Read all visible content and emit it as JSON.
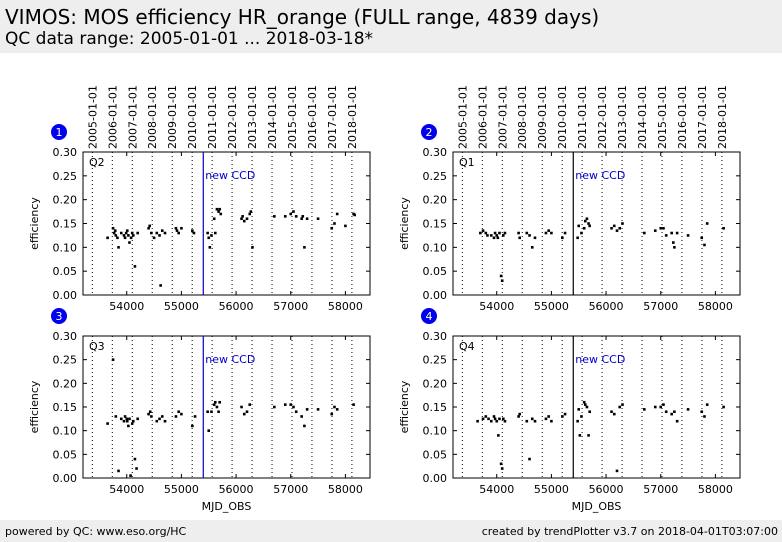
{
  "header": {
    "title": "VIMOS: MOS efficiency HR_orange (FULL range, 4839 days)",
    "subtitle": "QC data range: 2005-01-01 ... 2018-03-18*"
  },
  "footer": {
    "left": "powered by QC: www.eso.org/HC",
    "right": "created by trendPlotter v3.7 on 2018-04-01T03:07:00"
  },
  "colors": {
    "event_line": "#0000cc",
    "points": "#000000",
    "badge": "#0000ee"
  },
  "chart_data": [
    {
      "type": "scatter",
      "badge": "1",
      "label": "Q2",
      "xlabel": "",
      "ylabel": "efficiency",
      "xlim": [
        53200,
        58450
      ],
      "ylim": [
        0.0,
        0.3
      ],
      "xticks": [
        54000,
        55000,
        56000,
        57000,
        58000
      ],
      "yticks": [
        "0.00",
        "0.05",
        "0.10",
        "0.15",
        "0.20",
        "0.25",
        "0.30"
      ],
      "date_ticks": [
        "2005-01-01",
        "2006-01-01",
        "2007-01-01",
        "2008-01-01",
        "2009-01-01",
        "2010-01-01",
        "2011-01-01",
        "2012-01-01",
        "2013-01-01",
        "2014-01-01",
        "2015-01-01",
        "2016-01-01",
        "2017-01-01",
        "2018-01-01"
      ],
      "event": {
        "x": 55400,
        "label": "new CCD"
      },
      "x": [
        53650,
        53750,
        53770,
        53790,
        53800,
        53830,
        53850,
        53900,
        53950,
        53970,
        53990,
        54010,
        54030,
        54050,
        54080,
        54100,
        54120,
        54150,
        54200,
        54400,
        54420,
        54450,
        54500,
        54550,
        54600,
        54620,
        54650,
        54700,
        54900,
        54920,
        54950,
        55000,
        55200,
        55230,
        55480,
        55500,
        55520,
        55550,
        55600,
        55620,
        55650,
        55680,
        55700,
        55720,
        56100,
        56120,
        56150,
        56200,
        56250,
        56270,
        56300,
        56700,
        56900,
        57000,
        57050,
        57100,
        57200,
        57220,
        57250,
        57300,
        57500,
        57750,
        57800,
        57850,
        58000,
        58150,
        58170
      ],
      "y": [
        0.12,
        0.14,
        0.13,
        0.135,
        0.125,
        0.12,
        0.1,
        0.13,
        0.125,
        0.12,
        0.13,
        0.135,
        0.125,
        0.11,
        0.12,
        0.13,
        0.125,
        0.06,
        0.13,
        0.14,
        0.145,
        0.13,
        0.12,
        0.13,
        0.125,
        0.02,
        0.135,
        0.13,
        0.14,
        0.135,
        0.13,
        0.14,
        0.135,
        0.13,
        0.13,
        0.12,
        0.1,
        0.125,
        0.16,
        0.13,
        0.18,
        0.175,
        0.18,
        0.17,
        0.16,
        0.165,
        0.155,
        0.16,
        0.17,
        0.175,
        0.1,
        0.165,
        0.165,
        0.17,
        0.175,
        0.165,
        0.16,
        0.165,
        0.1,
        0.16,
        0.16,
        0.14,
        0.15,
        0.17,
        0.145,
        0.17,
        0.168
      ]
    },
    {
      "type": "scatter",
      "badge": "2",
      "label": "Q1",
      "xlabel": "",
      "ylabel": "efficiency",
      "xlim": [
        53200,
        58450
      ],
      "ylim": [
        0.0,
        0.3
      ],
      "xticks": [
        54000,
        55000,
        56000,
        57000,
        58000
      ],
      "yticks": [
        "0.00",
        "0.05",
        "0.10",
        "0.15",
        "0.20",
        "0.25",
        "0.30"
      ],
      "date_ticks": [
        "2005-01-01",
        "2006-01-01",
        "2007-01-01",
        "2008-01-01",
        "2009-01-01",
        "2010-01-01",
        "2011-01-01",
        "2012-01-01",
        "2013-01-01",
        "2014-01-01",
        "2015-01-01",
        "2016-01-01",
        "2017-01-01",
        "2018-01-01"
      ],
      "event": {
        "x": 55400,
        "label": "new CCD"
      },
      "x": [
        53700,
        53750,
        53800,
        53830,
        53900,
        53950,
        53970,
        54000,
        54020,
        54050,
        54080,
        54100,
        54120,
        54150,
        54400,
        54420,
        54550,
        54600,
        54650,
        54700,
        54900,
        54950,
        55000,
        55200,
        55250,
        55480,
        55500,
        55550,
        55600,
        55620,
        55650,
        55680,
        55700,
        56100,
        56150,
        56200,
        56250,
        56300,
        56700,
        56900,
        57000,
        57050,
        57100,
        57200,
        57230,
        57250,
        57300,
        57500,
        57750,
        57800,
        57850,
        58150
      ],
      "y": [
        0.13,
        0.135,
        0.13,
        0.125,
        0.125,
        0.12,
        0.13,
        0.125,
        0.12,
        0.13,
        0.04,
        0.03,
        0.125,
        0.13,
        0.13,
        0.12,
        0.13,
        0.125,
        0.1,
        0.12,
        0.13,
        0.135,
        0.13,
        0.12,
        0.13,
        0.12,
        0.145,
        0.13,
        0.14,
        0.155,
        0.16,
        0.15,
        0.145,
        0.14,
        0.145,
        0.135,
        0.14,
        0.15,
        0.13,
        0.135,
        0.14,
        0.14,
        0.125,
        0.13,
        0.11,
        0.1,
        0.13,
        0.125,
        0.12,
        0.105,
        0.15,
        0.14
      ]
    },
    {
      "type": "scatter",
      "badge": "3",
      "label": "Q3",
      "xlabel": "MJD_OBS",
      "ylabel": "efficiency",
      "xlim": [
        53200,
        58450
      ],
      "ylim": [
        0.0,
        0.3
      ],
      "xticks": [
        54000,
        55000,
        56000,
        57000,
        58000
      ],
      "yticks": [
        "0.00",
        "0.05",
        "0.10",
        "0.15",
        "0.20",
        "0.25",
        "0.30"
      ],
      "event": {
        "x": 55400,
        "label": "new CCD"
      },
      "x": [
        53650,
        53750,
        53800,
        53850,
        53900,
        53950,
        53970,
        54000,
        54010,
        54030,
        54050,
        54070,
        54100,
        54120,
        54150,
        54180,
        54200,
        54400,
        54430,
        54450,
        54550,
        54600,
        54650,
        54700,
        54900,
        54950,
        55000,
        55200,
        55250,
        55480,
        55500,
        55550,
        55600,
        55620,
        55650,
        55680,
        55700,
        56100,
        56150,
        56200,
        56250,
        56700,
        56900,
        57000,
        57050,
        57100,
        57200,
        57250,
        57300,
        57500,
        57750,
        57800,
        57850,
        58150
      ],
      "y": [
        0.115,
        0.25,
        0.13,
        0.015,
        0.125,
        0.12,
        0.13,
        0.125,
        0.12,
        0.11,
        0.125,
        0.005,
        0.115,
        0.12,
        0.04,
        0.02,
        0.125,
        0.135,
        0.14,
        0.13,
        0.12,
        0.125,
        0.13,
        0.12,
        0.13,
        0.14,
        0.135,
        0.11,
        0.13,
        0.14,
        0.1,
        0.14,
        0.155,
        0.16,
        0.15,
        0.14,
        0.16,
        0.15,
        0.135,
        0.14,
        0.155,
        0.15,
        0.155,
        0.155,
        0.15,
        0.14,
        0.13,
        0.11,
        0.145,
        0.145,
        0.135,
        0.15,
        0.145,
        0.155
      ]
    },
    {
      "type": "scatter",
      "badge": "4",
      "label": "Q4",
      "xlabel": "MJD_OBS",
      "ylabel": "efficiency",
      "xlim": [
        53200,
        58450
      ],
      "ylim": [
        0.0,
        0.3
      ],
      "xticks": [
        54000,
        55000,
        56000,
        57000,
        58000
      ],
      "yticks": [
        "0.00",
        "0.05",
        "0.10",
        "0.15",
        "0.20",
        "0.25",
        "0.30"
      ],
      "event": {
        "x": 55400,
        "label": "new CCD"
      },
      "x": [
        53650,
        53750,
        53800,
        53850,
        53900,
        53950,
        53970,
        54000,
        54030,
        54050,
        54080,
        54100,
        54120,
        54150,
        54400,
        54420,
        54550,
        54600,
        54650,
        54700,
        54900,
        54950,
        55000,
        55200,
        55250,
        55480,
        55500,
        55520,
        55550,
        55600,
        55620,
        55650,
        55680,
        55700,
        56100,
        56150,
        56200,
        56250,
        56300,
        56700,
        56900,
        57000,
        57050,
        57100,
        57200,
        57250,
        57300,
        57500,
        57750,
        57800,
        57850,
        58150
      ],
      "y": [
        0.12,
        0.125,
        0.13,
        0.125,
        0.12,
        0.13,
        0.125,
        0.12,
        0.09,
        0.125,
        0.03,
        0.02,
        0.125,
        0.12,
        0.13,
        0.135,
        0.12,
        0.04,
        0.125,
        0.12,
        0.125,
        0.13,
        0.12,
        0.13,
        0.135,
        0.12,
        0.145,
        0.09,
        0.13,
        0.16,
        0.155,
        0.15,
        0.09,
        0.14,
        0.14,
        0.135,
        0.015,
        0.15,
        0.155,
        0.145,
        0.15,
        0.15,
        0.155,
        0.14,
        0.135,
        0.14,
        0.12,
        0.145,
        0.14,
        0.13,
        0.155,
        0.15
      ]
    }
  ]
}
